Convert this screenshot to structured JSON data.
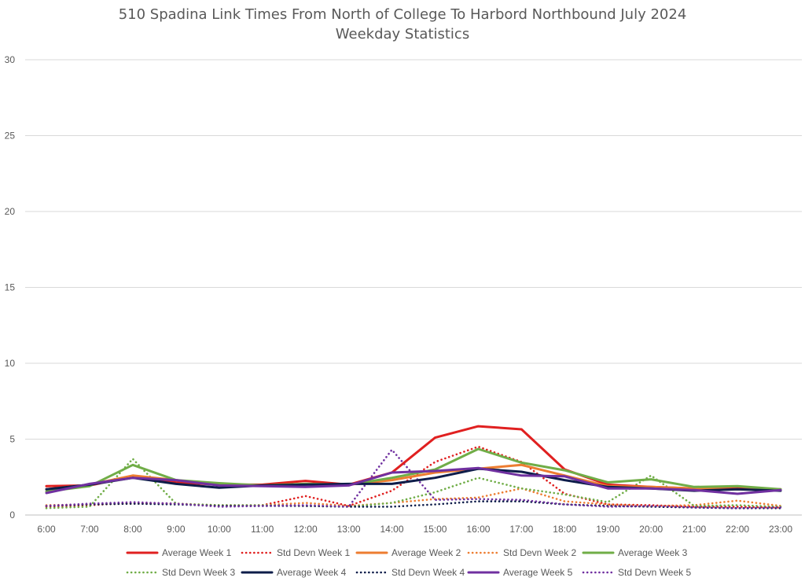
{
  "chart_data": {
    "type": "line",
    "title": "510 Spadina Link Times From North of College To Harbord Northbound July 2024",
    "subtitle": "Weekday Statistics",
    "xlabel": "",
    "ylabel": "",
    "ylim": [
      0,
      30
    ],
    "yticks": [
      0,
      5,
      10,
      15,
      20,
      25,
      30
    ],
    "grid": true,
    "legend_position": "bottom",
    "categories": [
      "6:00",
      "7:00",
      "8:00",
      "9:00",
      "10:00",
      "11:00",
      "12:00",
      "13:00",
      "14:00",
      "15:00",
      "16:00",
      "17:00",
      "18:00",
      "19:00",
      "20:00",
      "21:00",
      "22:00",
      "23:00"
    ],
    "series": [
      {
        "name": "Average Week 1",
        "color": "#e02020",
        "dash": "solid",
        "values": [
          1.9,
          1.95,
          2.55,
          2.15,
          2.0,
          2.0,
          2.25,
          2.0,
          2.8,
          5.1,
          5.85,
          5.65,
          3.0,
          2.0,
          1.85,
          1.75,
          1.85,
          1.65
        ]
      },
      {
        "name": "Std Devn Week 1",
        "color": "#e02020",
        "dash": "dotted",
        "values": [
          0.55,
          0.65,
          0.8,
          0.75,
          0.6,
          0.65,
          1.25,
          0.6,
          1.6,
          3.5,
          4.5,
          3.5,
          1.4,
          0.7,
          0.65,
          0.55,
          0.55,
          0.5
        ]
      },
      {
        "name": "Average Week 2",
        "color": "#ed7d31",
        "dash": "solid",
        "values": [
          1.7,
          2.0,
          2.6,
          2.3,
          2.0,
          1.95,
          2.05,
          2.0,
          2.3,
          2.8,
          3.05,
          3.3,
          2.6,
          1.9,
          1.85,
          1.75,
          1.7,
          1.7
        ]
      },
      {
        "name": "Std Devn Week 2",
        "color": "#ed7d31",
        "dash": "dotted",
        "values": [
          0.65,
          0.7,
          0.75,
          0.75,
          0.65,
          0.65,
          0.8,
          0.6,
          0.8,
          1.05,
          1.15,
          1.75,
          0.9,
          0.7,
          0.6,
          0.65,
          0.95,
          0.6
        ]
      },
      {
        "name": "Average Week 3",
        "color": "#70ad47",
        "dash": "solid",
        "values": [
          1.55,
          1.9,
          3.3,
          2.3,
          2.1,
          1.95,
          2.05,
          2.0,
          2.45,
          3.0,
          4.35,
          3.45,
          2.95,
          2.15,
          2.35,
          1.85,
          1.9,
          1.7
        ]
      },
      {
        "name": "Std Devn Week 3",
        "color": "#70ad47",
        "dash": "dotted",
        "values": [
          0.45,
          0.55,
          3.7,
          0.75,
          0.65,
          0.65,
          0.6,
          0.55,
          0.8,
          1.5,
          2.45,
          1.75,
          1.35,
          0.85,
          2.6,
          0.6,
          0.65,
          0.55
        ]
      },
      {
        "name": "Average Week 4",
        "color": "#0e1d4a",
        "dash": "solid",
        "values": [
          1.7,
          2.0,
          2.45,
          2.05,
          1.8,
          1.95,
          2.0,
          2.05,
          2.05,
          2.45,
          3.05,
          2.85,
          2.3,
          1.85,
          1.75,
          1.6,
          1.7,
          1.6
        ]
      },
      {
        "name": "Std Devn Week 4",
        "color": "#0e1d4a",
        "dash": "dotted",
        "values": [
          0.6,
          0.7,
          0.75,
          0.7,
          0.6,
          0.6,
          0.6,
          0.55,
          0.55,
          0.7,
          0.9,
          0.9,
          0.7,
          0.6,
          0.55,
          0.5,
          0.45,
          0.45
        ]
      },
      {
        "name": "Average Week 5",
        "color": "#7030a0",
        "dash": "solid",
        "values": [
          1.45,
          2.05,
          2.45,
          2.3,
          1.95,
          1.9,
          1.85,
          1.95,
          2.8,
          2.9,
          3.1,
          2.6,
          2.55,
          1.75,
          1.75,
          1.65,
          1.4,
          1.65
        ]
      },
      {
        "name": "Std Devn Week 5",
        "color": "#7030a0",
        "dash": "dotted",
        "values": [
          0.6,
          0.75,
          0.85,
          0.75,
          0.55,
          0.6,
          0.65,
          0.55,
          4.3,
          1.0,
          1.05,
          1.0,
          0.7,
          0.55,
          0.6,
          0.5,
          0.45,
          0.5
        ]
      }
    ]
  }
}
